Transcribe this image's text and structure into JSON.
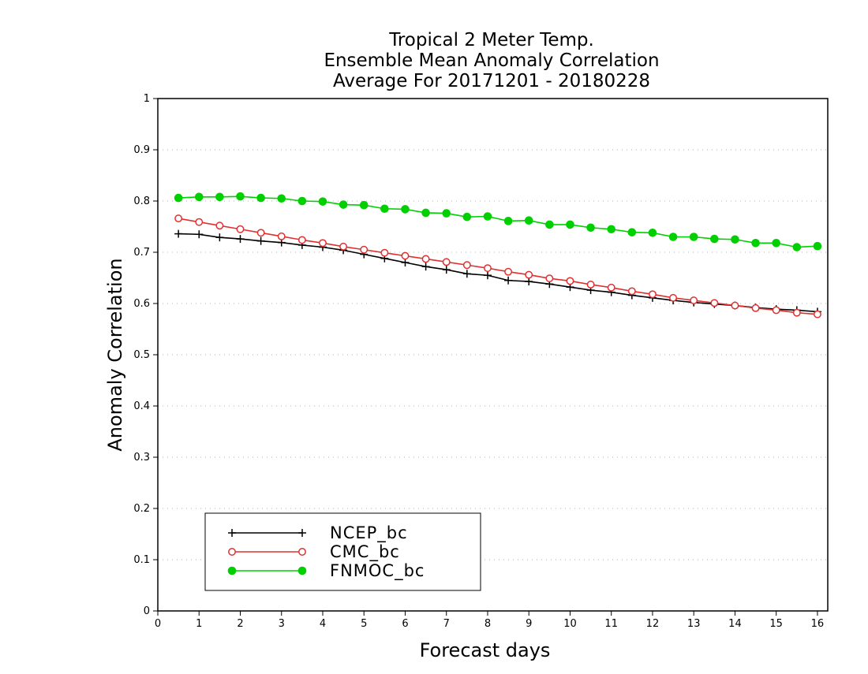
{
  "chart_data": {
    "type": "line",
    "title_lines": [
      "Tropical 2 Meter Temp.",
      "Ensemble Mean Anomaly Correlation",
      "Average For 20171201 - 20180228"
    ],
    "xlabel": "Forecast days",
    "ylabel": "Anomaly Correlation",
    "xlim": [
      0,
      16.25
    ],
    "ylim": [
      0,
      1
    ],
    "x_ticks": [
      "0",
      "1",
      "2",
      "3",
      "4",
      "5",
      "6",
      "7",
      "8",
      "9",
      "10",
      "11",
      "12",
      "13",
      "14",
      "15",
      "16"
    ],
    "y_ticks": [
      "0",
      "0.1",
      "0.2",
      "0.3",
      "0.4",
      "0.5",
      "0.6",
      "0.7",
      "0.8",
      "0.9",
      "1"
    ],
    "grid": "horizontal dotted",
    "legend_position": "bottom-left",
    "x": [
      0.5,
      1,
      1.5,
      2,
      2.5,
      3,
      3.5,
      4,
      4.5,
      5,
      5.5,
      6,
      6.5,
      7,
      7.5,
      8,
      8.5,
      9,
      9.5,
      10,
      10.5,
      11,
      11.5,
      12,
      12.5,
      13,
      13.5,
      14,
      14.5,
      15,
      15.5,
      16
    ],
    "series": [
      {
        "name": "NCEP_bc",
        "color": "#000000",
        "marker": "plus",
        "values": [
          0.736,
          0.735,
          0.729,
          0.726,
          0.722,
          0.719,
          0.714,
          0.71,
          0.704,
          0.696,
          0.688,
          0.68,
          0.672,
          0.666,
          0.658,
          0.655,
          0.645,
          0.643,
          0.638,
          0.632,
          0.626,
          0.622,
          0.616,
          0.611,
          0.606,
          0.602,
          0.599,
          0.596,
          0.592,
          0.589,
          0.587,
          0.584
        ]
      },
      {
        "name": "CMC_bc",
        "color": "#e03030",
        "marker": "open-circle",
        "values": [
          0.766,
          0.759,
          0.752,
          0.745,
          0.738,
          0.731,
          0.724,
          0.718,
          0.711,
          0.705,
          0.699,
          0.693,
          0.687,
          0.681,
          0.675,
          0.669,
          0.662,
          0.656,
          0.649,
          0.644,
          0.637,
          0.631,
          0.624,
          0.618,
          0.611,
          0.606,
          0.601,
          0.596,
          0.591,
          0.587,
          0.582,
          0.579
        ]
      },
      {
        "name": "FNMOC_bc",
        "color": "#00d000",
        "marker": "filled-circle",
        "values": [
          0.806,
          0.808,
          0.808,
          0.809,
          0.806,
          0.805,
          0.8,
          0.799,
          0.793,
          0.792,
          0.785,
          0.784,
          0.777,
          0.776,
          0.769,
          0.77,
          0.761,
          0.762,
          0.754,
          0.754,
          0.748,
          0.745,
          0.739,
          0.738,
          0.73,
          0.73,
          0.726,
          0.725,
          0.718,
          0.718,
          0.71,
          0.712
        ]
      }
    ]
  }
}
